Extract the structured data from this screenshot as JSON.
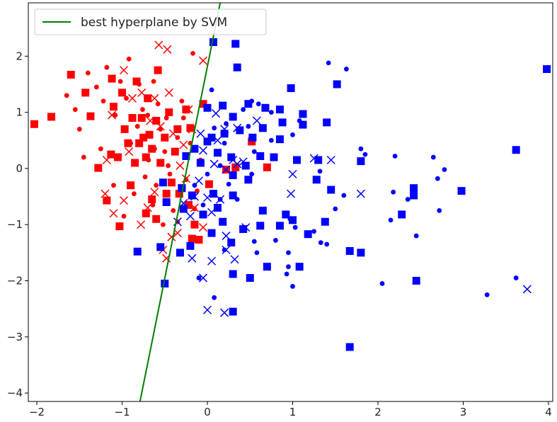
{
  "chart_data": {
    "type": "scatter",
    "title": "",
    "xlabel": "",
    "ylabel": "",
    "xlim": [
      -2.1,
      4.05
    ],
    "ylim": [
      -4.15,
      2.95
    ],
    "xticks": [
      -2,
      -1,
      0,
      1,
      2,
      3,
      4
    ],
    "yticks": [
      -4,
      -3,
      -2,
      -1,
      0,
      1,
      2
    ],
    "xtick_labels": [
      "−2",
      "−1",
      "0",
      "1",
      "2",
      "3",
      "4"
    ],
    "ytick_labels": [
      "−4",
      "−3",
      "−2",
      "−1",
      "0",
      "1",
      "2"
    ],
    "grid": false,
    "colors": {
      "red_class": "#ff0000",
      "blue_class": "#0000ff",
      "line": "#007f00",
      "axes": "#000000"
    },
    "legend": {
      "placement": "top-left",
      "entries": [
        {
          "label": "best hyperplane by SVM",
          "color": "#007f00",
          "marker": "line"
        }
      ]
    },
    "hyperplane": {
      "name": "best hyperplane by SVM",
      "points": [
        [
          -0.79,
          -4.15
        ],
        [
          0.15,
          2.95
        ]
      ]
    },
    "series": [
      {
        "class": "red",
        "marker": "square",
        "color": "#ff0000",
        "points": [
          [
            -2.03,
            0.79
          ],
          [
            -1.83,
            0.92
          ],
          [
            -1.6,
            1.67
          ],
          [
            -1.43,
            1.35
          ],
          [
            -1.37,
            0.93
          ],
          [
            -1.28,
            0.01
          ],
          [
            -1.13,
            0.25
          ],
          [
            -1.12,
            1.6
          ],
          [
            -1.1,
            1.1
          ],
          [
            -1.05,
            0.2
          ],
          [
            -1.0,
            1.35
          ],
          [
            -0.97,
            0.7
          ],
          [
            -0.93,
            0.45
          ],
          [
            -0.88,
            0.9
          ],
          [
            -0.85,
            0.1
          ],
          [
            -0.83,
            1.55
          ],
          [
            -0.8,
            0.45
          ],
          [
            -0.77,
            0.9
          ],
          [
            -0.75,
            0.55
          ],
          [
            -0.72,
            0.2
          ],
          [
            -0.7,
            1.25
          ],
          [
            -0.68,
            0.6
          ],
          [
            -0.65,
            0.35
          ],
          [
            -0.6,
            0.85
          ],
          [
            -0.58,
            1.75
          ],
          [
            -0.55,
            0.1
          ],
          [
            -0.5,
            0.55
          ],
          [
            -0.45,
            1.0
          ],
          [
            -0.42,
            -0.25
          ],
          [
            -0.38,
            0.3
          ],
          [
            -0.35,
            0.7
          ],
          [
            -0.3,
            -0.35
          ],
          [
            -0.25,
            1.05
          ],
          [
            -0.2,
            0.72
          ],
          [
            -0.15,
            -1.0
          ],
          [
            -0.05,
            1.15
          ],
          [
            -1.18,
            -0.57
          ],
          [
            -1.03,
            -1.03
          ],
          [
            -0.9,
            -0.3
          ],
          [
            -0.72,
            -0.8
          ],
          [
            -0.65,
            -0.55
          ],
          [
            -0.6,
            -0.9
          ],
          [
            -0.48,
            -0.45
          ],
          [
            -0.33,
            -0.45
          ],
          [
            -0.22,
            -0.65
          ],
          [
            -0.18,
            -1.25
          ],
          [
            -0.1,
            -1.27
          ],
          [
            0.02,
            -0.28
          ],
          [
            0.22,
            -0.02
          ],
          [
            0.33,
            0.02
          ],
          [
            0.52,
            0.48
          ],
          [
            0.7,
            0.02
          ]
        ]
      },
      {
        "class": "red",
        "marker": "dot",
        "color": "#ff0000",
        "points": [
          [
            -1.65,
            1.3
          ],
          [
            -1.55,
            1.05
          ],
          [
            -1.5,
            0.7
          ],
          [
            -1.45,
            0.2
          ],
          [
            -1.4,
            1.7
          ],
          [
            -1.3,
            1.45
          ],
          [
            -1.25,
            0.35
          ],
          [
            -1.22,
            1.2
          ],
          [
            -1.18,
            1.8
          ],
          [
            -1.1,
            -0.3
          ],
          [
            -1.02,
            1.55
          ],
          [
            -0.98,
            -0.85
          ],
          [
            -0.92,
            1.95
          ],
          [
            -0.9,
            0.45
          ],
          [
            -0.86,
            -0.45
          ],
          [
            -0.8,
            1.5
          ],
          [
            -0.76,
            1.05
          ],
          [
            -0.73,
            -0.15
          ],
          [
            -0.69,
            0.15
          ],
          [
            -0.63,
            1.55
          ],
          [
            -0.6,
            -0.3
          ],
          [
            -0.55,
            0.7
          ],
          [
            -0.52,
            -1.0
          ],
          [
            -0.48,
            0.9
          ],
          [
            -0.44,
            -0.1
          ],
          [
            -0.4,
            -0.75
          ],
          [
            -0.35,
            0.55
          ],
          [
            -0.3,
            1.2
          ],
          [
            -0.25,
            -0.2
          ],
          [
            -0.2,
            0.45
          ],
          [
            -0.17,
            2.05
          ],
          [
            -0.12,
            -0.4
          ],
          [
            -0.08,
            0.15
          ],
          [
            -0.62,
            0.35
          ],
          [
            -0.58,
            1.15
          ],
          [
            -0.46,
            0.05
          ],
          [
            -1.08,
            0.95
          ],
          [
            -0.95,
            1.25
          ],
          [
            -0.82,
            0.75
          ],
          [
            -0.7,
            0.95
          ],
          [
            -0.64,
            -0.65
          ],
          [
            -0.5,
            0.3
          ],
          [
            -0.35,
            -0.95
          ],
          [
            -0.28,
            0.9
          ],
          [
            -0.15,
            -0.72
          ]
        ]
      },
      {
        "class": "red",
        "marker": "x",
        "color": "#ff0000",
        "points": [
          [
            -0.57,
            2.2
          ],
          [
            -0.47,
            2.12
          ],
          [
            -1.12,
            0.95
          ],
          [
            -0.98,
            1.75
          ],
          [
            -0.88,
            1.25
          ],
          [
            -0.77,
            1.35
          ],
          [
            -0.67,
            0.85
          ],
          [
            -0.62,
            1.25
          ],
          [
            -0.55,
            0.75
          ],
          [
            -0.45,
            1.35
          ],
          [
            -0.4,
            0.62
          ],
          [
            -0.32,
            0.05
          ],
          [
            -0.28,
            0.42
          ],
          [
            -0.22,
            1.05
          ],
          [
            -0.18,
            0.7
          ],
          [
            -0.05,
            1.92
          ],
          [
            -1.2,
            -0.45
          ],
          [
            -1.1,
            -0.8
          ],
          [
            -0.98,
            -0.57
          ],
          [
            -0.78,
            -1.0
          ],
          [
            -0.7,
            -0.7
          ],
          [
            -0.62,
            -0.42
          ],
          [
            -0.52,
            -1.45
          ],
          [
            -0.48,
            -1.6
          ],
          [
            -0.42,
            -1.22
          ],
          [
            -0.35,
            -1.15
          ],
          [
            -0.25,
            -0.18
          ],
          [
            -0.15,
            -0.7
          ],
          [
            -0.05,
            -1.05
          ],
          [
            -1.18,
            0.15
          ],
          [
            -0.92,
            0.3
          ]
        ]
      },
      {
        "class": "blue",
        "marker": "square",
        "color": "#0000ff",
        "points": [
          [
            0.07,
            2.25
          ],
          [
            0.33,
            2.22
          ],
          [
            0.35,
            1.8
          ],
          [
            3.98,
            1.77
          ],
          [
            1.52,
            1.5
          ],
          [
            0.98,
            1.43
          ],
          [
            0.0,
            1.08
          ],
          [
            0.18,
            1.12
          ],
          [
            0.48,
            1.15
          ],
          [
            0.68,
            1.08
          ],
          [
            0.85,
            1.05
          ],
          [
            1.12,
            0.97
          ],
          [
            0.3,
            0.92
          ],
          [
            0.65,
            0.72
          ],
          [
            0.88,
            0.82
          ],
          [
            1.12,
            0.78
          ],
          [
            1.4,
            0.82
          ],
          [
            0.05,
            0.55
          ],
          [
            0.2,
            0.62
          ],
          [
            0.38,
            0.68
          ],
          [
            0.53,
            0.55
          ],
          [
            0.85,
            0.52
          ],
          [
            -0.15,
            0.35
          ],
          [
            0.0,
            0.48
          ],
          [
            0.12,
            0.28
          ],
          [
            0.28,
            0.2
          ],
          [
            0.45,
            0.05
          ],
          [
            0.62,
            0.22
          ],
          [
            0.78,
            0.2
          ],
          [
            1.05,
            0.15
          ],
          [
            1.3,
            0.15
          ],
          [
            1.8,
            0.13
          ],
          [
            3.62,
            0.33
          ],
          [
            -0.25,
            0.22
          ],
          [
            -0.08,
            0.1
          ],
          [
            0.3,
            -0.12
          ],
          [
            0.48,
            -0.2
          ],
          [
            1.28,
            -0.2
          ],
          [
            1.45,
            -0.38
          ],
          [
            2.42,
            -0.35
          ],
          [
            2.42,
            -0.48
          ],
          [
            2.98,
            -0.4
          ],
          [
            -0.52,
            -0.25
          ],
          [
            -0.3,
            -0.35
          ],
          [
            -0.18,
            -0.48
          ],
          [
            0.07,
            -0.45
          ],
          [
            0.3,
            -0.48
          ],
          [
            0.65,
            -0.75
          ],
          [
            0.92,
            -0.82
          ],
          [
            1.38,
            -0.95
          ],
          [
            2.28,
            -0.82
          ],
          [
            -0.48,
            -0.6
          ],
          [
            -0.28,
            -0.72
          ],
          [
            -0.05,
            -0.82
          ],
          [
            0.12,
            -0.7
          ],
          [
            0.18,
            -0.95
          ],
          [
            0.42,
            -1.08
          ],
          [
            0.62,
            -1.02
          ],
          [
            0.85,
            -1.02
          ],
          [
            1.0,
            -0.92
          ],
          [
            1.18,
            -1.17
          ],
          [
            -0.55,
            -1.4
          ],
          [
            -0.2,
            -1.38
          ],
          [
            0.05,
            -1.15
          ],
          [
            0.28,
            -1.32
          ],
          [
            -0.82,
            -1.48
          ],
          [
            -0.32,
            -1.5
          ],
          [
            1.67,
            -1.47
          ],
          [
            1.8,
            -1.5
          ],
          [
            0.7,
            -1.75
          ],
          [
            1.08,
            -1.75
          ],
          [
            0.3,
            -1.88
          ],
          [
            0.5,
            -1.95
          ],
          [
            -0.5,
            -2.05
          ],
          [
            2.45,
            -2.0
          ],
          [
            0.3,
            -2.55
          ],
          [
            1.67,
            -3.18
          ]
        ]
      },
      {
        "class": "blue",
        "marker": "dot",
        "color": "#0000ff",
        "points": [
          [
            1.42,
            1.88
          ],
          [
            1.63,
            1.77
          ],
          [
            0.05,
            1.4
          ],
          [
            0.52,
            1.2
          ],
          [
            0.6,
            1.15
          ],
          [
            0.42,
            1.05
          ],
          [
            0.75,
            1.0
          ],
          [
            1.08,
            0.85
          ],
          [
            0.22,
            0.8
          ],
          [
            0.48,
            0.75
          ],
          [
            1.0,
            0.6
          ],
          [
            0.08,
            0.72
          ],
          [
            0.75,
            0.5
          ],
          [
            1.8,
            0.35
          ],
          [
            0.2,
            0.45
          ],
          [
            0.55,
            0.3
          ],
          [
            1.85,
            0.25
          ],
          [
            2.2,
            0.22
          ],
          [
            2.65,
            0.2
          ],
          [
            0.15,
            0.05
          ],
          [
            2.78,
            -0.02
          ],
          [
            2.7,
            -0.18
          ],
          [
            1.32,
            -0.05
          ],
          [
            0.52,
            -0.1
          ],
          [
            1.6,
            -0.48
          ],
          [
            2.18,
            -0.42
          ],
          [
            2.35,
            -0.55
          ],
          [
            2.72,
            -0.75
          ],
          [
            2.15,
            -0.92
          ],
          [
            1.5,
            -0.72
          ],
          [
            0.97,
            -0.9
          ],
          [
            1.03,
            -1.05
          ],
          [
            1.25,
            -1.12
          ],
          [
            1.33,
            -1.32
          ],
          [
            1.4,
            -1.35
          ],
          [
            2.45,
            -1.2
          ],
          [
            0.95,
            -1.5
          ],
          [
            0.93,
            -1.88
          ],
          [
            0.95,
            -1.75
          ],
          [
            1.0,
            -2.1
          ],
          [
            2.05,
            -2.05
          ],
          [
            3.28,
            -2.25
          ],
          [
            3.62,
            -1.95
          ],
          [
            0.08,
            -2.3
          ],
          [
            -0.1,
            -1.95
          ],
          [
            0.0,
            -0.1
          ],
          [
            -0.15,
            -0.3
          ],
          [
            0.25,
            -0.28
          ],
          [
            0.35,
            -0.55
          ],
          [
            -0.05,
            -0.65
          ],
          [
            0.15,
            -0.55
          ],
          [
            0.55,
            -1.3
          ],
          [
            0.8,
            -1.28
          ],
          [
            0.58,
            -1.5
          ],
          [
            0.2,
            -1.45
          ]
        ]
      },
      {
        "class": "blue",
        "marker": "x",
        "color": "#0000ff",
        "points": [
          [
            0.1,
            0.98
          ],
          [
            0.35,
            0.72
          ],
          [
            0.58,
            0.85
          ],
          [
            0.2,
            0.7
          ],
          [
            -0.08,
            0.62
          ],
          [
            0.12,
            0.5
          ],
          [
            0.3,
            0.15
          ],
          [
            -0.05,
            0.32
          ],
          [
            0.08,
            0.08
          ],
          [
            0.22,
            -0.02
          ],
          [
            0.42,
            0.12
          ],
          [
            0.35,
            0.08
          ],
          [
            1.0,
            -0.1
          ],
          [
            1.25,
            0.18
          ],
          [
            1.45,
            0.15
          ],
          [
            1.8,
            -0.45
          ],
          [
            0.98,
            -0.45
          ],
          [
            -0.15,
            -0.5
          ],
          [
            0.0,
            -0.52
          ],
          [
            0.15,
            -0.55
          ],
          [
            -0.28,
            -0.62
          ],
          [
            0.05,
            -0.78
          ],
          [
            -0.2,
            -0.85
          ],
          [
            0.45,
            -1.05
          ],
          [
            -0.35,
            -0.95
          ],
          [
            0.22,
            -1.2
          ],
          [
            -0.18,
            -1.6
          ],
          [
            0.05,
            -1.65
          ],
          [
            0.32,
            -1.62
          ],
          [
            0.22,
            -1.45
          ],
          [
            -0.05,
            -1.95
          ],
          [
            0.0,
            -2.52
          ],
          [
            0.2,
            -2.57
          ],
          [
            3.75,
            -2.15
          ],
          [
            -0.1,
            -0.22
          ]
        ]
      }
    ]
  }
}
